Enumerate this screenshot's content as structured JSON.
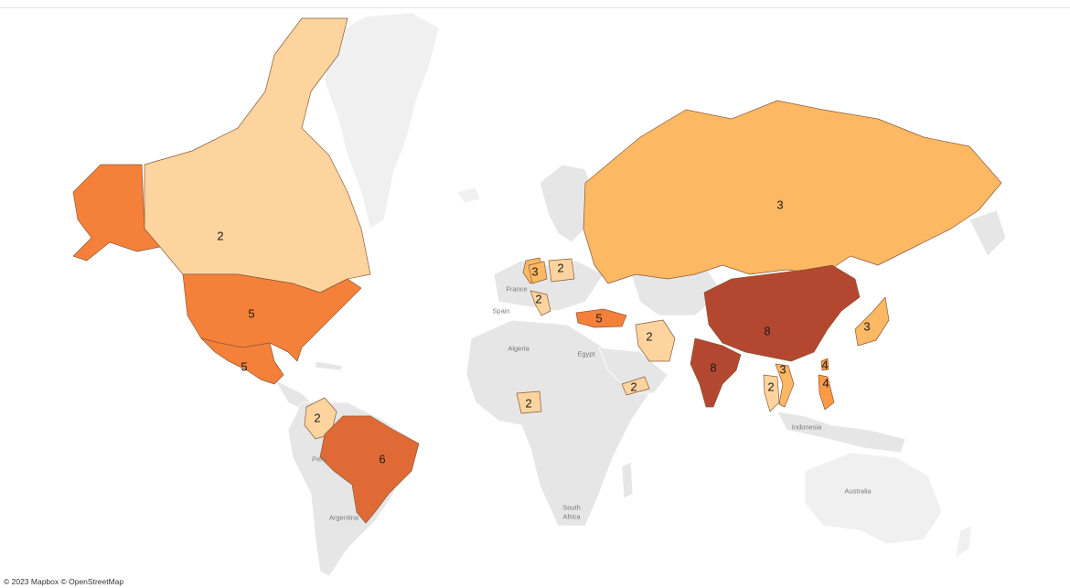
{
  "attribution": "© 2023 Mapbox © OpenStreetMap",
  "legend_colors": {
    "2": "#fdd49e",
    "3": "#fdb863",
    "4": "#fd9a45",
    "5": "#f5803a",
    "6": "#e06a35",
    "8": "#b3472f"
  },
  "place_labels": {
    "france": "France",
    "spain": "Spain",
    "algeria": "Algeria",
    "egypt": "Egypt",
    "peru": "Peru",
    "argentina": "Argentina",
    "south_africa_1": "South",
    "south_africa_2": "Africa",
    "indonesia": "Indonesia",
    "australia": "Australia"
  },
  "countries": {
    "alaska": {
      "name": "Alaska (United States)",
      "count": 5
    },
    "canada": {
      "name": "Canada",
      "count": 2
    },
    "united_states": {
      "name": "United States",
      "count": 5
    },
    "mexico": {
      "name": "Mexico",
      "count": 5
    },
    "colombia": {
      "name": "Colombia",
      "count": 2
    },
    "brazil": {
      "name": "Brazil",
      "count": 6
    },
    "united_kingdom": {
      "name": "United Kingdom",
      "count": 3
    },
    "germany": {
      "name": "Germany",
      "count": 3
    },
    "poland": {
      "name": "Poland",
      "count": 2
    },
    "italy": {
      "name": "Italy",
      "count": 2
    },
    "turkey": {
      "name": "Turkey",
      "count": 5
    },
    "iran": {
      "name": "Iran",
      "count": 2
    },
    "nigeria": {
      "name": "Nigeria",
      "count": 2
    },
    "yemen": {
      "name": "Yemen",
      "count": 2
    },
    "russia": {
      "name": "Russia",
      "count": 3
    },
    "china": {
      "name": "China",
      "count": 8
    },
    "india": {
      "name": "India",
      "count": 8
    },
    "japan": {
      "name": "Japan",
      "count": 3
    },
    "taiwan": {
      "name": "Taiwan",
      "count": 4
    },
    "vietnam": {
      "name": "Vietnam",
      "count": 3
    },
    "thailand": {
      "name": "Thailand",
      "count": 2
    },
    "philippines": {
      "name": "Philippines",
      "count": 4
    }
  }
}
